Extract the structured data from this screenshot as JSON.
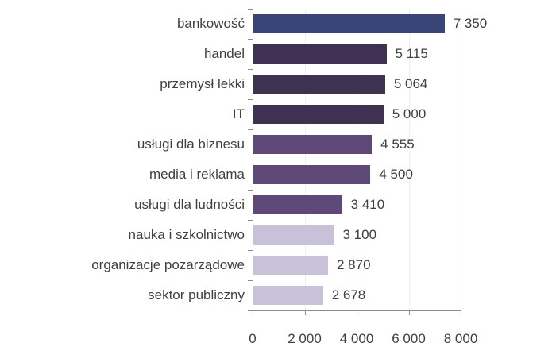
{
  "chart_data": {
    "type": "bar",
    "orientation": "horizontal",
    "title": "",
    "xlabel": "",
    "ylabel": "",
    "categories": [
      "bankowość",
      "handel",
      "przemysł lekki",
      "IT",
      "usługi dla biznesu",
      "media i reklama",
      "usługi dla ludności",
      "nauka i szkolnictwo",
      "organizacje pozarządowe",
      "sektor publiczny"
    ],
    "values": [
      7350,
      5115,
      5064,
      5000,
      4555,
      4500,
      3410,
      3100,
      2870,
      2678
    ],
    "value_labels": [
      "7 350",
      "5 115",
      "5 064",
      "5 000",
      "4 555",
      "4 500",
      "3 410",
      "3 100",
      "2 870",
      "2 678"
    ],
    "bar_colors": [
      "#3a4477",
      "#3f3152",
      "#3f3152",
      "#3f3152",
      "#5e4878",
      "#5e4878",
      "#5e4878",
      "#c9c0da",
      "#c9c0da",
      "#c9c0da"
    ],
    "xlim": [
      0,
      8000
    ],
    "xticks": [
      0,
      2000,
      4000,
      6000,
      8000
    ],
    "xtick_labels": [
      "0",
      "2 000",
      "4 000",
      "6 000",
      "8 000"
    ],
    "grid": true,
    "legend": null
  }
}
